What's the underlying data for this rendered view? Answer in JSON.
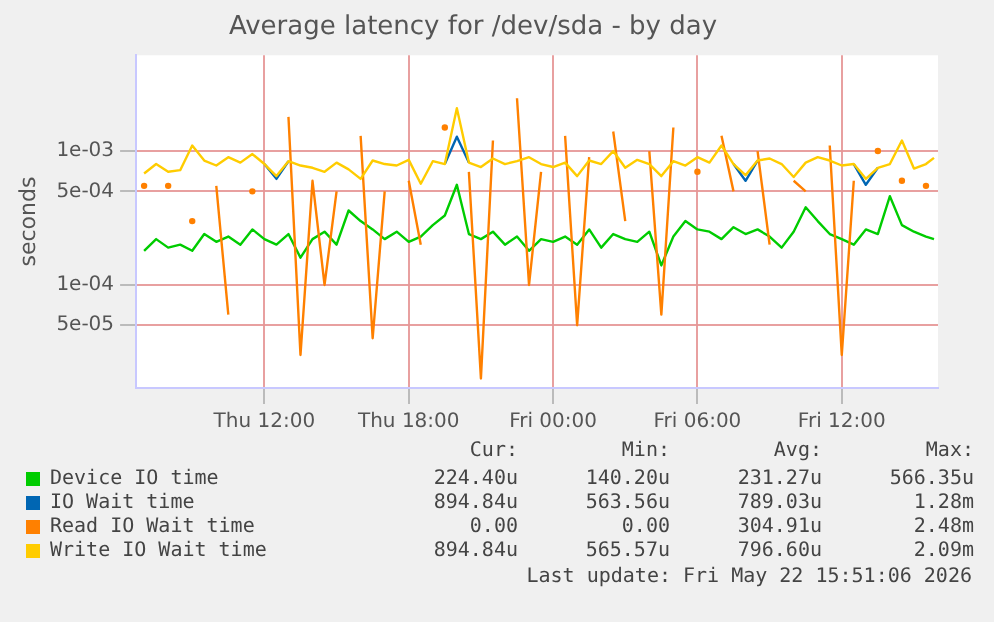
{
  "chart_data": {
    "type": "line",
    "title": "Average latency for /dev/sda - by day",
    "ylabel": "seconds",
    "log": "y",
    "grid": true,
    "legend": "bottom",
    "marker": "none",
    "line_style": "solid",
    "x": [
      "2026-05-21T07:00",
      "2026-05-21T07:30",
      "2026-05-21T08:00",
      "2026-05-21T08:30",
      "2026-05-21T09:00",
      "2026-05-21T09:30",
      "2026-05-21T10:00",
      "2026-05-21T10:30",
      "2026-05-21T11:00",
      "2026-05-21T11:30",
      "2026-05-21T12:00",
      "2026-05-21T12:30",
      "2026-05-21T13:00",
      "2026-05-21T13:30",
      "2026-05-21T14:00",
      "2026-05-21T14:30",
      "2026-05-21T15:00",
      "2026-05-21T15:30",
      "2026-05-21T16:00",
      "2026-05-21T16:30",
      "2026-05-21T17:00",
      "2026-05-21T17:30",
      "2026-05-21T18:00",
      "2026-05-21T18:30",
      "2026-05-21T19:00",
      "2026-05-21T19:30",
      "2026-05-21T20:00",
      "2026-05-21T20:30",
      "2026-05-21T21:00",
      "2026-05-21T21:30",
      "2026-05-21T22:00",
      "2026-05-21T22:30",
      "2026-05-21T23:00",
      "2026-05-21T23:30",
      "2026-05-22T00:00",
      "2026-05-22T00:30",
      "2026-05-22T01:00",
      "2026-05-22T01:30",
      "2026-05-22T02:00",
      "2026-05-22T02:30",
      "2026-05-22T03:00",
      "2026-05-22T03:30",
      "2026-05-22T04:00",
      "2026-05-22T04:30",
      "2026-05-22T05:00",
      "2026-05-22T05:30",
      "2026-05-22T06:00",
      "2026-05-22T06:30",
      "2026-05-22T07:00",
      "2026-05-22T07:30",
      "2026-05-22T08:00",
      "2026-05-22T08:30",
      "2026-05-22T09:00",
      "2026-05-22T09:30",
      "2026-05-22T10:00",
      "2026-05-22T10:30",
      "2026-05-22T11:00",
      "2026-05-22T11:30",
      "2026-05-22T12:00",
      "2026-05-22T12:30",
      "2026-05-22T13:00",
      "2026-05-22T13:30",
      "2026-05-22T14:00",
      "2026-05-22T14:30",
      "2026-05-22T15:00",
      "2026-05-22T15:30",
      "2026-05-22T15:50"
    ],
    "xlim": [
      "2026-05-21T06:40",
      "2026-05-22T16:00"
    ],
    "xticks": [
      {
        "value": "2026-05-21T12:00",
        "label": "Thu 12:00"
      },
      {
        "value": "2026-05-21T18:00",
        "label": "Thu 18:00"
      },
      {
        "value": "2026-05-22T00:00",
        "label": "Fri 00:00"
      },
      {
        "value": "2026-05-22T06:00",
        "label": "Fri 06:00"
      },
      {
        "value": "2026-05-22T12:00",
        "label": "Fri 12:00"
      }
    ],
    "ylim": [
      1.7e-05,
      0.0052
    ],
    "yticks": [
      {
        "value": 5e-05,
        "label": "5e-05"
      },
      {
        "value": 0.0001,
        "label": "1e-04"
      },
      {
        "value": 0.0005,
        "label": "5e-04"
      },
      {
        "value": 0.001,
        "label": "1e-03"
      }
    ],
    "series": [
      {
        "name": "Device IO time",
        "color": "#00cc00",
        "values": [
          0.00018,
          0.00022,
          0.00019,
          0.0002,
          0.00018,
          0.00024,
          0.00021,
          0.00023,
          0.0002,
          0.00026,
          0.00022,
          0.0002,
          0.00024,
          0.00016,
          0.00022,
          0.00025,
          0.0002,
          0.00036,
          0.0003,
          0.00026,
          0.00022,
          0.00025,
          0.00021,
          0.00023,
          0.00028,
          0.00033,
          0.00056,
          0.00024,
          0.00022,
          0.00025,
          0.0002,
          0.00023,
          0.00018,
          0.00022,
          0.00021,
          0.00023,
          0.0002,
          0.00026,
          0.00019,
          0.00024,
          0.00022,
          0.00021,
          0.00025,
          0.00014,
          0.00023,
          0.0003,
          0.00026,
          0.00025,
          0.00022,
          0.00027,
          0.00024,
          0.00026,
          0.00023,
          0.00019,
          0.00025,
          0.00038,
          0.0003,
          0.00024,
          0.00022,
          0.0002,
          0.00026,
          0.00024,
          0.00046,
          0.00028,
          0.00025,
          0.00023,
          0.00022
        ]
      },
      {
        "name": "IO Wait time",
        "color": "#0066b3",
        "values": [
          null,
          null,
          null,
          null,
          null,
          null,
          null,
          null,
          null,
          null,
          0.0008,
          0.00062,
          0.00084,
          null,
          null,
          null,
          null,
          null,
          null,
          null,
          null,
          null,
          null,
          null,
          null,
          0.0008,
          0.00128,
          0.00082,
          null,
          null,
          null,
          null,
          null,
          null,
          null,
          null,
          null,
          null,
          null,
          null,
          null,
          null,
          null,
          null,
          null,
          null,
          null,
          null,
          null,
          0.0008,
          0.0006,
          0.00085,
          null,
          null,
          null,
          null,
          null,
          null,
          null,
          0.0008,
          0.00056,
          0.00075,
          null,
          null,
          null,
          null,
          null
        ]
      },
      {
        "name": "Read IO Wait time",
        "color": "#ff8000",
        "values": [
          0.00055,
          null,
          0.00055,
          null,
          0.0003,
          null,
          0.00055,
          6e-05,
          null,
          0.0005,
          null,
          null,
          0.0018,
          3e-05,
          0.0006,
          0.0001,
          0.0005,
          null,
          0.0013,
          4e-05,
          0.0005,
          null,
          0.0006,
          0.0002,
          null,
          0.0015,
          null,
          0.0007,
          2e-05,
          0.0012,
          null,
          0.00248,
          0.0001,
          0.0007,
          null,
          0.0013,
          5e-05,
          0.0009,
          null,
          0.0014,
          0.0003,
          null,
          0.001,
          6e-05,
          0.0015,
          null,
          0.0007,
          null,
          0.0013,
          0.0005,
          null,
          0.001,
          0.0002,
          null,
          0.0006,
          0.0005,
          null,
          0.0011,
          3e-05,
          0.0006,
          null,
          0.001,
          null,
          0.0006,
          null,
          0.00055,
          null
        ]
      },
      {
        "name": "Write IO Wait time",
        "color": "#ffcc00",
        "values": [
          0.00068,
          0.0008,
          0.0007,
          0.00072,
          0.0011,
          0.00085,
          0.00078,
          0.0009,
          0.00082,
          0.00095,
          0.0008,
          0.00065,
          0.00084,
          0.00078,
          0.00075,
          0.0007,
          0.00082,
          0.00073,
          0.00062,
          0.00085,
          0.0008,
          0.00078,
          0.00086,
          0.00057,
          0.00084,
          0.0008,
          0.00209,
          0.00082,
          0.00076,
          0.00088,
          0.0008,
          0.00084,
          0.0009,
          0.0008,
          0.00076,
          0.00082,
          0.00065,
          0.00085,
          0.0008,
          0.001,
          0.00075,
          0.00086,
          0.0008,
          0.00065,
          0.00084,
          0.00078,
          0.0009,
          0.00082,
          0.0011,
          0.0008,
          0.00066,
          0.00085,
          0.00088,
          0.0008,
          0.00064,
          0.00082,
          0.0009,
          0.00085,
          0.00078,
          0.0008,
          0.00062,
          0.00075,
          0.0008,
          0.0012,
          0.00074,
          0.0008,
          0.00089
        ]
      }
    ],
    "annotations": [
      "Cur:",
      "Min:",
      "Avg:",
      "Max:",
      "224.40u",
      "140.20u",
      "231.27u",
      "566.35u",
      "894.84u",
      "563.56u",
      "789.03u",
      "1.28m",
      "0.00",
      "0.00",
      "304.91u",
      "2.48m",
      "894.84u",
      "565.57u",
      "796.60u",
      "2.09m",
      "Last update: Fri May 22 15:51:06 2026"
    ]
  }
}
